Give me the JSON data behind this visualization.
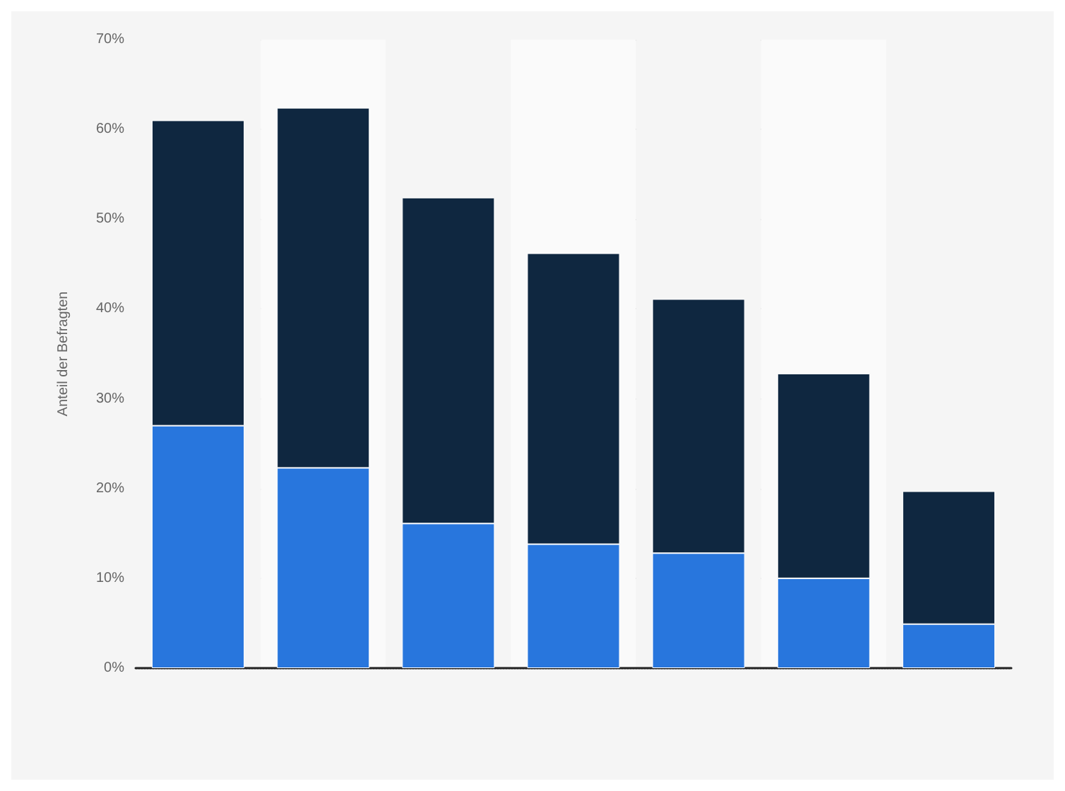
{
  "chart_data": {
    "type": "bar",
    "stacked": true,
    "ylabel": "Anteil der Befragten",
    "categories": [
      null,
      null,
      null,
      null,
      null,
      null,
      null
    ],
    "series": [
      {
        "color": "#2876dd",
        "values": [
          27,
          22.3,
          16.1,
          13.8,
          12.8,
          10,
          4.9
        ]
      },
      {
        "color": "#0f2740",
        "values": [
          34,
          40.1,
          36.3,
          32.4,
          28.3,
          22.8,
          14.8
        ]
      }
    ],
    "ylim": [
      0,
      70
    ],
    "yticks": [
      {
        "value": 0,
        "label": "0%"
      },
      {
        "value": 10,
        "label": "10%"
      },
      {
        "value": 20,
        "label": "20%"
      },
      {
        "value": 30,
        "label": "30%"
      },
      {
        "value": 40,
        "label": "40%"
      },
      {
        "value": 50,
        "label": "50%"
      },
      {
        "value": 60,
        "label": "60%"
      },
      {
        "value": 70,
        "label": "70%"
      }
    ],
    "grid": "y"
  }
}
